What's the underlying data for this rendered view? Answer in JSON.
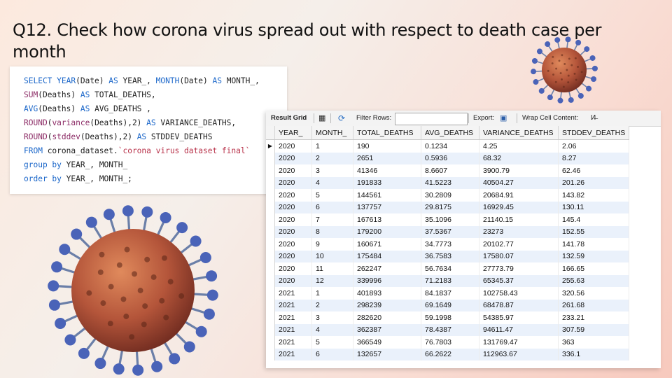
{
  "title": "Q12. Check how corona virus spread out with respect to death case per month",
  "sql": {
    "lines": [
      [
        {
          "t": "SELECT ",
          "c": "kw"
        },
        {
          "t": "YEAR",
          "c": "kw"
        },
        {
          "t": "(Date) ",
          "c": ""
        },
        {
          "t": "AS",
          "c": "kw"
        },
        {
          "t": " YEAR_, ",
          "c": ""
        },
        {
          "t": "MONTH",
          "c": "kw"
        },
        {
          "t": "(Date) ",
          "c": ""
        },
        {
          "t": "AS",
          "c": "kw"
        },
        {
          "t": " MONTH_,",
          "c": ""
        }
      ],
      [
        {
          "t": "SUM",
          "c": "fn"
        },
        {
          "t": "(Deaths) ",
          "c": ""
        },
        {
          "t": "AS",
          "c": "kw"
        },
        {
          "t": " TOTAL_DEATHS,",
          "c": ""
        }
      ],
      [
        {
          "t": "AVG",
          "c": "kw"
        },
        {
          "t": "(Deaths) ",
          "c": ""
        },
        {
          "t": "AS",
          "c": "kw"
        },
        {
          "t": " AVG_DEATHS ,",
          "c": ""
        }
      ],
      [
        {
          "t": "ROUND",
          "c": "fn"
        },
        {
          "t": "(",
          "c": ""
        },
        {
          "t": "variance",
          "c": "fn"
        },
        {
          "t": "(Deaths),2) ",
          "c": ""
        },
        {
          "t": "AS",
          "c": "kw"
        },
        {
          "t": " VARIANCE_DEATHS,",
          "c": ""
        }
      ],
      [
        {
          "t": "ROUND",
          "c": "fn"
        },
        {
          "t": "(",
          "c": ""
        },
        {
          "t": "stddev",
          "c": "fn"
        },
        {
          "t": "(Deaths),2) ",
          "c": ""
        },
        {
          "t": "AS",
          "c": "kw"
        },
        {
          "t": " STDDEV_DEATHS",
          "c": ""
        }
      ],
      [
        {
          "t": "FROM",
          "c": "kw"
        },
        {
          "t": " corona_dataset.",
          "c": ""
        },
        {
          "t": "`corona virus dataset final`",
          "c": "str"
        }
      ],
      [
        {
          "t": "group by",
          "c": "kw"
        },
        {
          "t": " YEAR_, MONTH_",
          "c": ""
        }
      ],
      [
        {
          "t": "order by",
          "c": "kw"
        },
        {
          "t": " YEAR_, MONTH_;",
          "c": ""
        }
      ]
    ]
  },
  "toolbar": {
    "result_grid": "Result Grid",
    "filter_rows": "Filter Rows:",
    "filter_value": "",
    "export": "Export:",
    "wrap_cell": "Wrap Cell Content:",
    "wrap_icon_glyph": "И̶"
  },
  "grid": {
    "columns": [
      "YEAR_",
      "MONTH_",
      "TOTAL_DEATHS",
      "AVG_DEATHS",
      "VARIANCE_DEATHS",
      "STDDEV_DEATHS"
    ],
    "row_marker": "▶",
    "rows": [
      [
        "2020",
        "1",
        "190",
        "0.1234",
        "4.25",
        "2.06"
      ],
      [
        "2020",
        "2",
        "2651",
        "0.5936",
        "68.32",
        "8.27"
      ],
      [
        "2020",
        "3",
        "41346",
        "8.6607",
        "3900.79",
        "62.46"
      ],
      [
        "2020",
        "4",
        "191833",
        "41.5223",
        "40504.27",
        "201.26"
      ],
      [
        "2020",
        "5",
        "144561",
        "30.2809",
        "20684.91",
        "143.82"
      ],
      [
        "2020",
        "6",
        "137757",
        "29.8175",
        "16929.45",
        "130.11"
      ],
      [
        "2020",
        "7",
        "167613",
        "35.1096",
        "21140.15",
        "145.4"
      ],
      [
        "2020",
        "8",
        "179200",
        "37.5367",
        "23273",
        "152.55"
      ],
      [
        "2020",
        "9",
        "160671",
        "34.7773",
        "20102.77",
        "141.78"
      ],
      [
        "2020",
        "10",
        "175484",
        "36.7583",
        "17580.07",
        "132.59"
      ],
      [
        "2020",
        "11",
        "262247",
        "56.7634",
        "27773.79",
        "166.65"
      ],
      [
        "2020",
        "12",
        "339996",
        "71.2183",
        "65345.37",
        "255.63"
      ],
      [
        "2021",
        "1",
        "401893",
        "84.1837",
        "102758.43",
        "320.56"
      ],
      [
        "2021",
        "2",
        "298239",
        "69.1649",
        "68478.87",
        "261.68"
      ],
      [
        "2021",
        "3",
        "282620",
        "59.1998",
        "54385.97",
        "233.21"
      ],
      [
        "2021",
        "4",
        "362387",
        "78.4387",
        "94611.47",
        "307.59"
      ],
      [
        "2021",
        "5",
        "366549",
        "76.7803",
        "131769.47",
        "363"
      ],
      [
        "2021",
        "6",
        "132657",
        "66.2622",
        "112963.67",
        "336.1"
      ]
    ]
  },
  "images": {
    "virus_large": "coronavirus-illustration",
    "virus_small": "coronavirus-illustration"
  }
}
